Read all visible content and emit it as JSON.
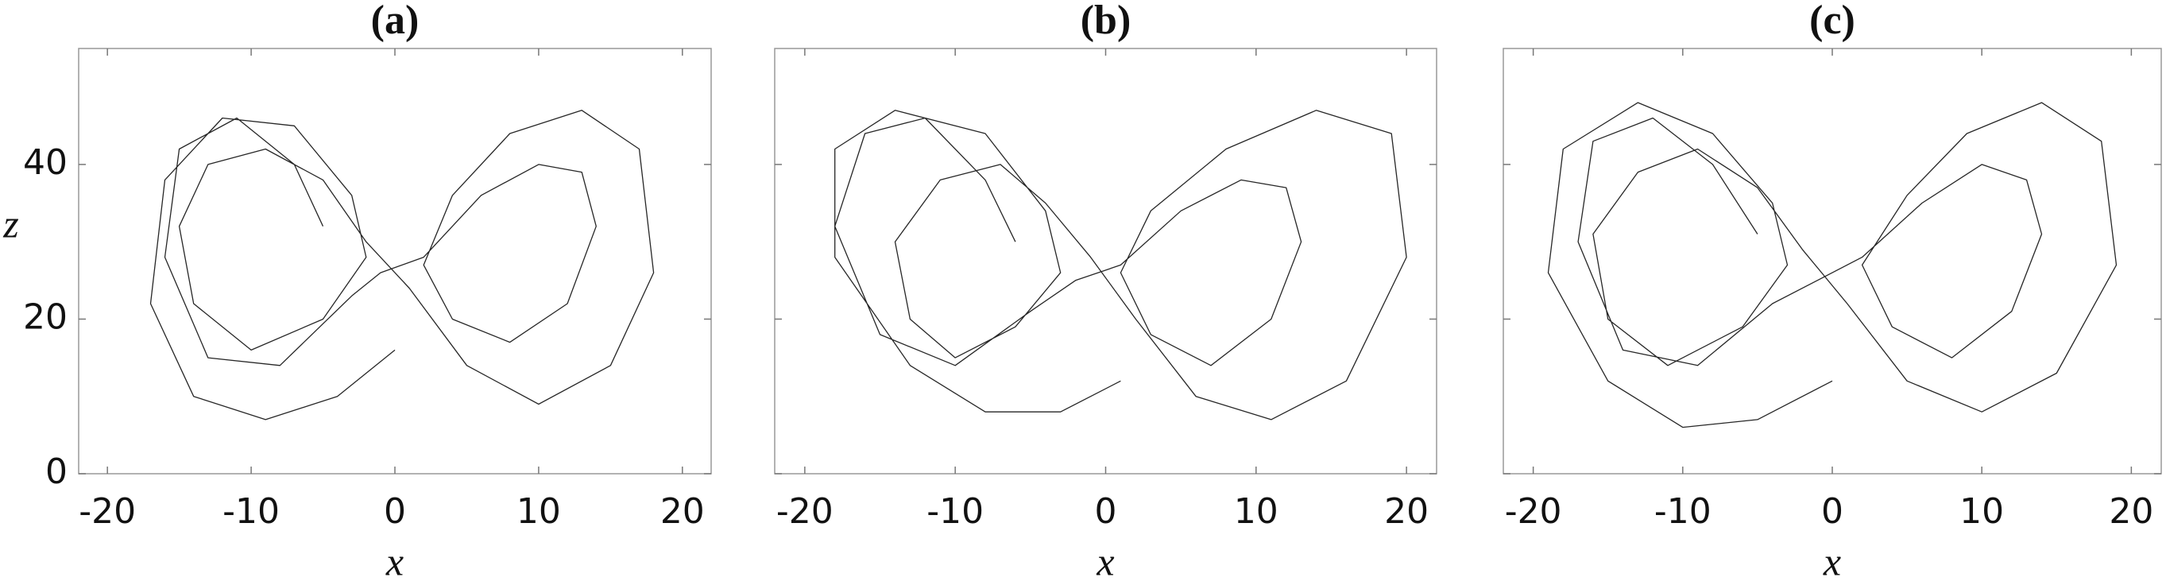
{
  "chart_data": [
    {
      "type": "line",
      "title": "(a)",
      "xlabel": "x",
      "ylabel": "z",
      "color": "#000000",
      "xlim": [
        -22,
        22
      ],
      "ylim": [
        0,
        55
      ],
      "xticks": [
        -20,
        -10,
        0,
        10,
        20
      ],
      "yticks": [
        0,
        20,
        40
      ],
      "show_yticklabels": true,
      "x": [
        0,
        -4,
        -9,
        -14,
        -17,
        -16,
        -12,
        -7,
        -3,
        -2,
        -5,
        -10,
        -14,
        -15,
        -13,
        -9,
        -5,
        -2,
        1,
        5,
        10,
        15,
        18,
        17,
        13,
        8,
        4,
        2,
        4,
        8,
        12,
        14,
        13,
        10,
        6,
        2,
        -1,
        -3,
        -8,
        -13,
        -16,
        -15,
        -11,
        -7,
        -5
      ],
      "values": [
        16,
        10,
        7,
        10,
        22,
        38,
        46,
        45,
        36,
        28,
        20,
        16,
        22,
        32,
        40,
        42,
        38,
        30,
        24,
        14,
        9,
        14,
        26,
        42,
        47,
        44,
        36,
        27,
        20,
        17,
        22,
        32,
        39,
        40,
        36,
        28,
        26,
        23,
        14,
        15,
        28,
        42,
        46,
        40,
        32
      ]
    },
    {
      "type": "line",
      "title": "(b)",
      "xlabel": "x",
      "color": "#000000",
      "xlim": [
        -22,
        22
      ],
      "ylim": [
        0,
        55
      ],
      "xticks": [
        -20,
        -10,
        0,
        10,
        20
      ],
      "yticks": [
        0,
        20,
        40
      ],
      "show_yticklabels": false,
      "x": [
        1,
        -3,
        -8,
        -13,
        -18,
        -18,
        -14,
        -8,
        -4,
        -3,
        -6,
        -10,
        -13,
        -14,
        -11,
        -7,
        -4,
        -1,
        2,
        6,
        11,
        16,
        20,
        19,
        14,
        8,
        3,
        1,
        3,
        7,
        11,
        13,
        12,
        9,
        5,
        1,
        -2,
        -5,
        -10,
        -15,
        -18,
        -16,
        -12,
        -8,
        -6
      ],
      "values": [
        12,
        8,
        8,
        14,
        28,
        42,
        47,
        44,
        34,
        26,
        19,
        15,
        20,
        30,
        38,
        40,
        35,
        28,
        20,
        10,
        7,
        12,
        28,
        44,
        47,
        42,
        34,
        26,
        18,
        14,
        20,
        30,
        37,
        38,
        34,
        27,
        25,
        21,
        14,
        18,
        32,
        44,
        46,
        38,
        30
      ]
    },
    {
      "type": "line",
      "title": "(c)",
      "xlabel": "x",
      "color": "#000000",
      "xlim": [
        -22,
        22
      ],
      "ylim": [
        0,
        55
      ],
      "xticks": [
        -20,
        -10,
        0,
        10,
        20
      ],
      "yticks": [
        0,
        20,
        40
      ],
      "show_yticklabels": false,
      "x": [
        0,
        -5,
        -10,
        -15,
        -19,
        -18,
        -13,
        -8,
        -4,
        -3,
        -6,
        -11,
        -15,
        -16,
        -13,
        -9,
        -5,
        -2,
        1,
        5,
        10,
        15,
        19,
        18,
        14,
        9,
        5,
        2,
        4,
        8,
        12,
        14,
        13,
        10,
        6,
        2,
        -1,
        -4,
        -9,
        -14,
        -17,
        -16,
        -12,
        -8,
        -5
      ],
      "values": [
        12,
        7,
        6,
        12,
        26,
        42,
        48,
        44,
        35,
        27,
        19,
        14,
        20,
        31,
        39,
        42,
        37,
        29,
        22,
        12,
        8,
        13,
        27,
        43,
        48,
        44,
        36,
        27,
        19,
        15,
        21,
        31,
        38,
        40,
        35,
        28,
        25,
        22,
        14,
        16,
        30,
        43,
        46,
        40,
        31
      ]
    }
  ]
}
